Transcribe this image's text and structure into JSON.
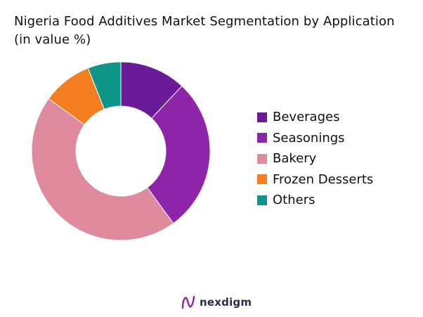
{
  "chart_data": {
    "type": "pie",
    "title": "Nigeria Food Additives Market Segmentation by Application",
    "subtitle": "(in value %)",
    "donut": true,
    "categories": [
      "Beverages",
      "Seasonings",
      "Bakery",
      "Frozen Desserts",
      "Others"
    ],
    "values": [
      12,
      28,
      45,
      9,
      6
    ],
    "colors": [
      "#6a1b9a",
      "#8e24aa",
      "#e08a9e",
      "#f57f20",
      "#0f9488"
    ],
    "legend_position": "right"
  },
  "brand": {
    "name": "nexdigm",
    "logo_icon": "nexdigm-logo-icon",
    "logo_color": "#8e24aa"
  }
}
